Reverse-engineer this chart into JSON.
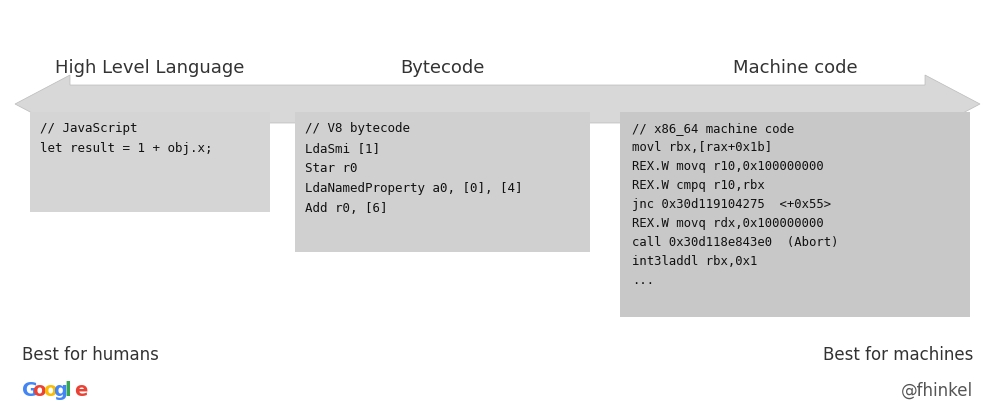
{
  "bg_color": "#ffffff",
  "arrow_color": "#d8d8d8",
  "arrow_edge_color": "#cccccc",
  "box1_color": "#d5d5d5",
  "box2_color": "#d0d0d0",
  "box3_color": "#c8c8c8",
  "title1": "High Level Language",
  "title2": "Bytecode",
  "title3": "Machine code",
  "code1": "// JavaScript\nlet result = 1 + obj.x;",
  "code2": "// V8 bytecode\nLdaSmi [1]\nStar r0\nLdaNamedProperty a0, [0], [4]\nAdd r0, [6]",
  "code3": "// x86_64 machine code\nmovl rbx,[rax+0x1b]\nREX.W movq r10,0x100000000\nREX.W cmpq r10,rbx\njnc 0x30d119104275  <+0x55>\nREX.W movq rdx,0x100000000\ncall 0x30d118e843e0  (Abort)\nint3laddl rbx,0x1\n...",
  "label_left": "Best for humans",
  "label_right": "Best for machines",
  "google_letters": [
    "G",
    "o",
    "o",
    "g",
    "l",
    "e"
  ],
  "google_colors": [
    "#4285F4",
    "#EA4335",
    "#FBBC05",
    "#4285F4",
    "#34A853",
    "#EA4335"
  ],
  "fhinkel": "@fhinkel",
  "figsize": [
    9.95,
    4.12
  ],
  "dpi": 100
}
